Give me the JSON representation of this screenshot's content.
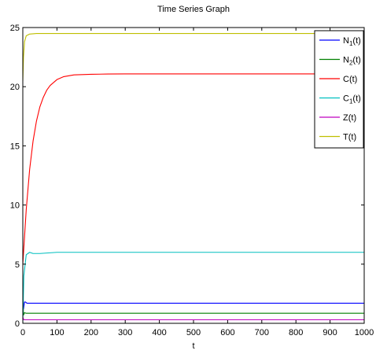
{
  "chart_data": {
    "type": "line",
    "title": "Time Series Graph",
    "xlabel": "t",
    "ylabel": "",
    "xlim": [
      0,
      1000
    ],
    "ylim": [
      0,
      25
    ],
    "xticks": [
      0,
      100,
      200,
      300,
      400,
      500,
      600,
      700,
      800,
      900,
      1000
    ],
    "yticks": [
      0,
      5,
      10,
      15,
      20,
      25
    ],
    "grid": false,
    "legend_position": "top-right",
    "series": [
      {
        "name": "N1(t)",
        "label_main": "N",
        "label_sub": "1",
        "label_tail": "(t)",
        "color": "#0000ff",
        "x": [
          0,
          2,
          5,
          8,
          12,
          20,
          40,
          1000
        ],
        "y": [
          3.0,
          1.2,
          1.8,
          1.8,
          1.7,
          1.7,
          1.7,
          1.7
        ]
      },
      {
        "name": "N2(t)",
        "label_main": "N",
        "label_sub": "2",
        "label_tail": "(t)",
        "color": "#008000",
        "x": [
          0,
          2,
          5,
          10,
          20,
          40,
          1000
        ],
        "y": [
          2.5,
          0.7,
          0.9,
          0.85,
          0.85,
          0.85,
          0.85
        ]
      },
      {
        "name": "C(t)",
        "label_main": "C",
        "label_sub": "",
        "label_tail": "(t)",
        "color": "#ff0000",
        "x": [
          0,
          10,
          20,
          30,
          40,
          50,
          60,
          70,
          80,
          100,
          120,
          150,
          200,
          250,
          300,
          400,
          1000
        ],
        "y": [
          5.0,
          9.6,
          13.0,
          15.4,
          17.1,
          18.3,
          19.1,
          19.7,
          20.1,
          20.6,
          20.85,
          21.0,
          21.05,
          21.07,
          21.08,
          21.08,
          21.08
        ]
      },
      {
        "name": "C1(t)",
        "label_main": "C",
        "label_sub": "1",
        "label_tail": "(t)",
        "color": "#00bfbf",
        "x": [
          0,
          3,
          10,
          20,
          30,
          50,
          100,
          150,
          1000
        ],
        "y": [
          0.0,
          4.0,
          5.8,
          6.0,
          5.9,
          5.9,
          6.0,
          6.0,
          6.0
        ]
      },
      {
        "name": "Z(t)",
        "label_main": "Z",
        "label_sub": "",
        "label_tail": "(t)",
        "color": "#bf00bf",
        "x": [
          0,
          3,
          10,
          1000
        ],
        "y": [
          0.5,
          0.3,
          0.3,
          0.3
        ]
      },
      {
        "name": "T(t)",
        "label_main": "T",
        "label_sub": "",
        "label_tail": "(t)",
        "color": "#bfbf00",
        "x": [
          0,
          2,
          5,
          10,
          20,
          40,
          100,
          1000
        ],
        "y": [
          20.5,
          22.5,
          23.8,
          24.3,
          24.45,
          24.5,
          24.5,
          24.5
        ]
      }
    ]
  }
}
